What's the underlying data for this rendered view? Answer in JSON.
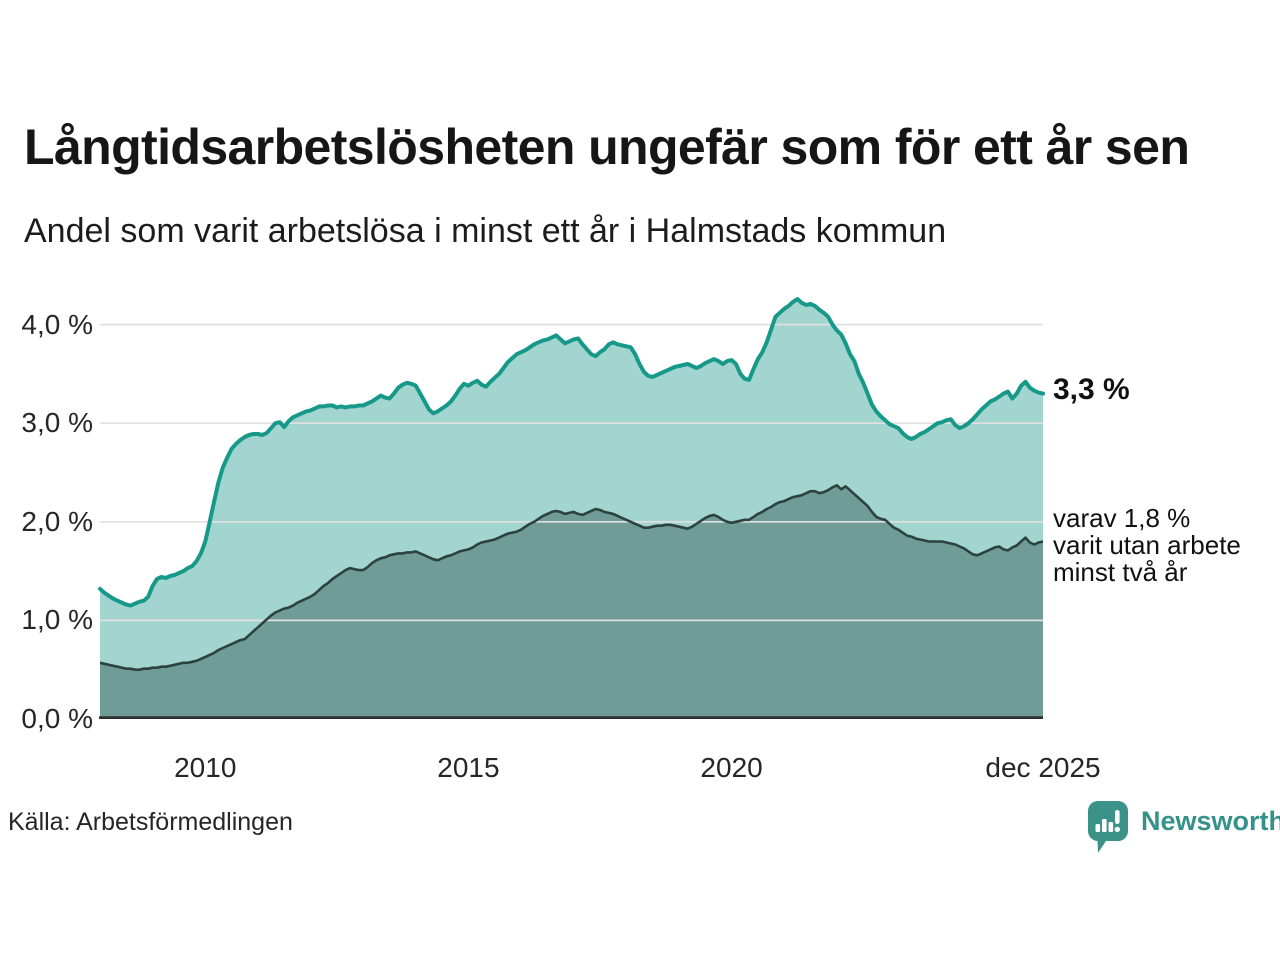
{
  "header": {
    "title": "Långtidsarbetslösheten ungefär som för ett år sen",
    "subtitle": "Andel som varit arbetslösa i minst ett år i Halmstads kommun"
  },
  "footer": {
    "source": "Källa: Arbetsförmedlingen",
    "brand_name": "Newsworthy",
    "brand_color": "#35918a",
    "brand_icon": "newsworthy-speech-bubble-bar-chart-icon",
    "brand_icon_color": "#3a9289"
  },
  "chart_data": {
    "type": "area",
    "title": "Långtidsarbetslösheten ungefär som för ett år sen",
    "subtitle": "Andel som varit arbetslösa i minst ett år i Halmstads kommun",
    "unit": "%",
    "x_start_year": 2008,
    "x_step": "month",
    "x_end_label": "dec 2025",
    "ylim": [
      0,
      4.35
    ],
    "grid": true,
    "legend_position": "end-of-line-labels",
    "colors": {
      "grid": "#e0e0e0",
      "axis": "#2f2f2f",
      "text": "#1a1a1a"
    },
    "y_ticks": [
      {
        "value": 0,
        "label": "0,0 %"
      },
      {
        "value": 1,
        "label": "1,0 %"
      },
      {
        "value": 2,
        "label": "2,0 %"
      },
      {
        "value": 3,
        "label": "3,0 %"
      },
      {
        "value": 4,
        "label": "4,0 %"
      }
    ],
    "x_ticks": [
      {
        "year": 2010,
        "label": "2010"
      },
      {
        "year": 2015,
        "label": "2015"
      },
      {
        "year": 2020,
        "label": "2020"
      },
      {
        "year": 2025.9167,
        "label": "dec 2025"
      }
    ],
    "series": [
      {
        "name": "arbetslosa-minst-ett-ar",
        "end_label": "3,3 %",
        "end_value": 3.3,
        "line_color": "#17998a",
        "fill_color": "#a2d5cf",
        "values": [
          1.32,
          1.28,
          1.25,
          1.22,
          1.2,
          1.18,
          1.16,
          1.15,
          1.17,
          1.19,
          1.2,
          1.24,
          1.35,
          1.42,
          1.44,
          1.43,
          1.45,
          1.46,
          1.48,
          1.5,
          1.53,
          1.55,
          1.6,
          1.68,
          1.8,
          2.0,
          2.2,
          2.4,
          2.55,
          2.65,
          2.74,
          2.79,
          2.83,
          2.86,
          2.88,
          2.89,
          2.89,
          2.88,
          2.9,
          2.95,
          3.0,
          3.01,
          2.96,
          3.02,
          3.06,
          3.08,
          3.1,
          3.12,
          3.13,
          3.15,
          3.17,
          3.17,
          3.18,
          3.18,
          3.16,
          3.17,
          3.16,
          3.17,
          3.17,
          3.18,
          3.18,
          3.2,
          3.22,
          3.25,
          3.28,
          3.26,
          3.25,
          3.3,
          3.36,
          3.39,
          3.41,
          3.4,
          3.38,
          3.3,
          3.22,
          3.14,
          3.1,
          3.12,
          3.15,
          3.18,
          3.22,
          3.28,
          3.35,
          3.4,
          3.38,
          3.41,
          3.43,
          3.39,
          3.37,
          3.42,
          3.46,
          3.5,
          3.56,
          3.62,
          3.66,
          3.7,
          3.72,
          3.74,
          3.77,
          3.8,
          3.82,
          3.84,
          3.85,
          3.87,
          3.89,
          3.85,
          3.81,
          3.83,
          3.85,
          3.86,
          3.8,
          3.75,
          3.7,
          3.68,
          3.72,
          3.75,
          3.8,
          3.82,
          3.8,
          3.79,
          3.78,
          3.77,
          3.7,
          3.6,
          3.52,
          3.48,
          3.47,
          3.49,
          3.51,
          3.53,
          3.55,
          3.57,
          3.58,
          3.59,
          3.6,
          3.58,
          3.56,
          3.58,
          3.61,
          3.63,
          3.65,
          3.63,
          3.6,
          3.63,
          3.64,
          3.6,
          3.5,
          3.45,
          3.44,
          3.55,
          3.65,
          3.72,
          3.82,
          3.95,
          4.08,
          4.12,
          4.16,
          4.19,
          4.23,
          4.26,
          4.22,
          4.2,
          4.21,
          4.19,
          4.15,
          4.12,
          4.08,
          4.0,
          3.94,
          3.9,
          3.81,
          3.7,
          3.63,
          3.5,
          3.41,
          3.3,
          3.19,
          3.12,
          3.07,
          3.03,
          2.99,
          2.97,
          2.95,
          2.9,
          2.86,
          2.84,
          2.86,
          2.89,
          2.91,
          2.94,
          2.97,
          3.0,
          3.01,
          3.03,
          3.04,
          2.98,
          2.95,
          2.97,
          3.0,
          3.04,
          3.09,
          3.14,
          3.18,
          3.22,
          3.24,
          3.27,
          3.3,
          3.32,
          3.25,
          3.3,
          3.38,
          3.42,
          3.36,
          3.33,
          3.31,
          3.3
        ]
      },
      {
        "name": "utan-arbete-minst-tva-ar",
        "end_label": "varav 1,8 %\nvarit utan arbete\nminst två år",
        "end_value": 1.8,
        "line_color": "#2c423f",
        "fill_color": "#709c97",
        "values": [
          0.57,
          0.56,
          0.55,
          0.54,
          0.53,
          0.52,
          0.51,
          0.51,
          0.5,
          0.5,
          0.51,
          0.51,
          0.52,
          0.52,
          0.53,
          0.53,
          0.54,
          0.55,
          0.56,
          0.57,
          0.57,
          0.58,
          0.59,
          0.61,
          0.63,
          0.65,
          0.67,
          0.7,
          0.72,
          0.74,
          0.76,
          0.78,
          0.8,
          0.81,
          0.85,
          0.89,
          0.93,
          0.97,
          1.01,
          1.05,
          1.08,
          1.1,
          1.12,
          1.13,
          1.15,
          1.18,
          1.2,
          1.22,
          1.24,
          1.27,
          1.31,
          1.35,
          1.38,
          1.42,
          1.45,
          1.48,
          1.51,
          1.53,
          1.52,
          1.51,
          1.51,
          1.54,
          1.58,
          1.61,
          1.63,
          1.64,
          1.66,
          1.67,
          1.68,
          1.68,
          1.69,
          1.69,
          1.7,
          1.68,
          1.66,
          1.64,
          1.62,
          1.61,
          1.63,
          1.65,
          1.66,
          1.68,
          1.7,
          1.71,
          1.72,
          1.74,
          1.77,
          1.79,
          1.8,
          1.81,
          1.82,
          1.84,
          1.86,
          1.88,
          1.89,
          1.9,
          1.92,
          1.95,
          1.98,
          2.0,
          2.03,
          2.06,
          2.08,
          2.1,
          2.11,
          2.1,
          2.08,
          2.09,
          2.1,
          2.08,
          2.07,
          2.09,
          2.11,
          2.13,
          2.12,
          2.1,
          2.09,
          2.08,
          2.06,
          2.04,
          2.02,
          2.0,
          1.98,
          1.96,
          1.94,
          1.94,
          1.95,
          1.96,
          1.96,
          1.97,
          1.97,
          1.96,
          1.95,
          1.94,
          1.93,
          1.95,
          1.98,
          2.01,
          2.04,
          2.06,
          2.07,
          2.05,
          2.02,
          2.0,
          1.99,
          2.0,
          2.01,
          2.02,
          2.02,
          2.05,
          2.08,
          2.1,
          2.13,
          2.15,
          2.18,
          2.2,
          2.21,
          2.23,
          2.25,
          2.26,
          2.27,
          2.29,
          2.31,
          2.31,
          2.29,
          2.3,
          2.32,
          2.35,
          2.37,
          2.33,
          2.36,
          2.32,
          2.28,
          2.24,
          2.2,
          2.16,
          2.1,
          2.05,
          2.03,
          2.02,
          1.98,
          1.94,
          1.92,
          1.89,
          1.86,
          1.85,
          1.83,
          1.82,
          1.81,
          1.8,
          1.8,
          1.8,
          1.8,
          1.79,
          1.78,
          1.77,
          1.75,
          1.73,
          1.7,
          1.67,
          1.66,
          1.68,
          1.7,
          1.72,
          1.74,
          1.75,
          1.72,
          1.71,
          1.74,
          1.76,
          1.8,
          1.84,
          1.79,
          1.77,
          1.79,
          1.8
        ]
      }
    ]
  }
}
